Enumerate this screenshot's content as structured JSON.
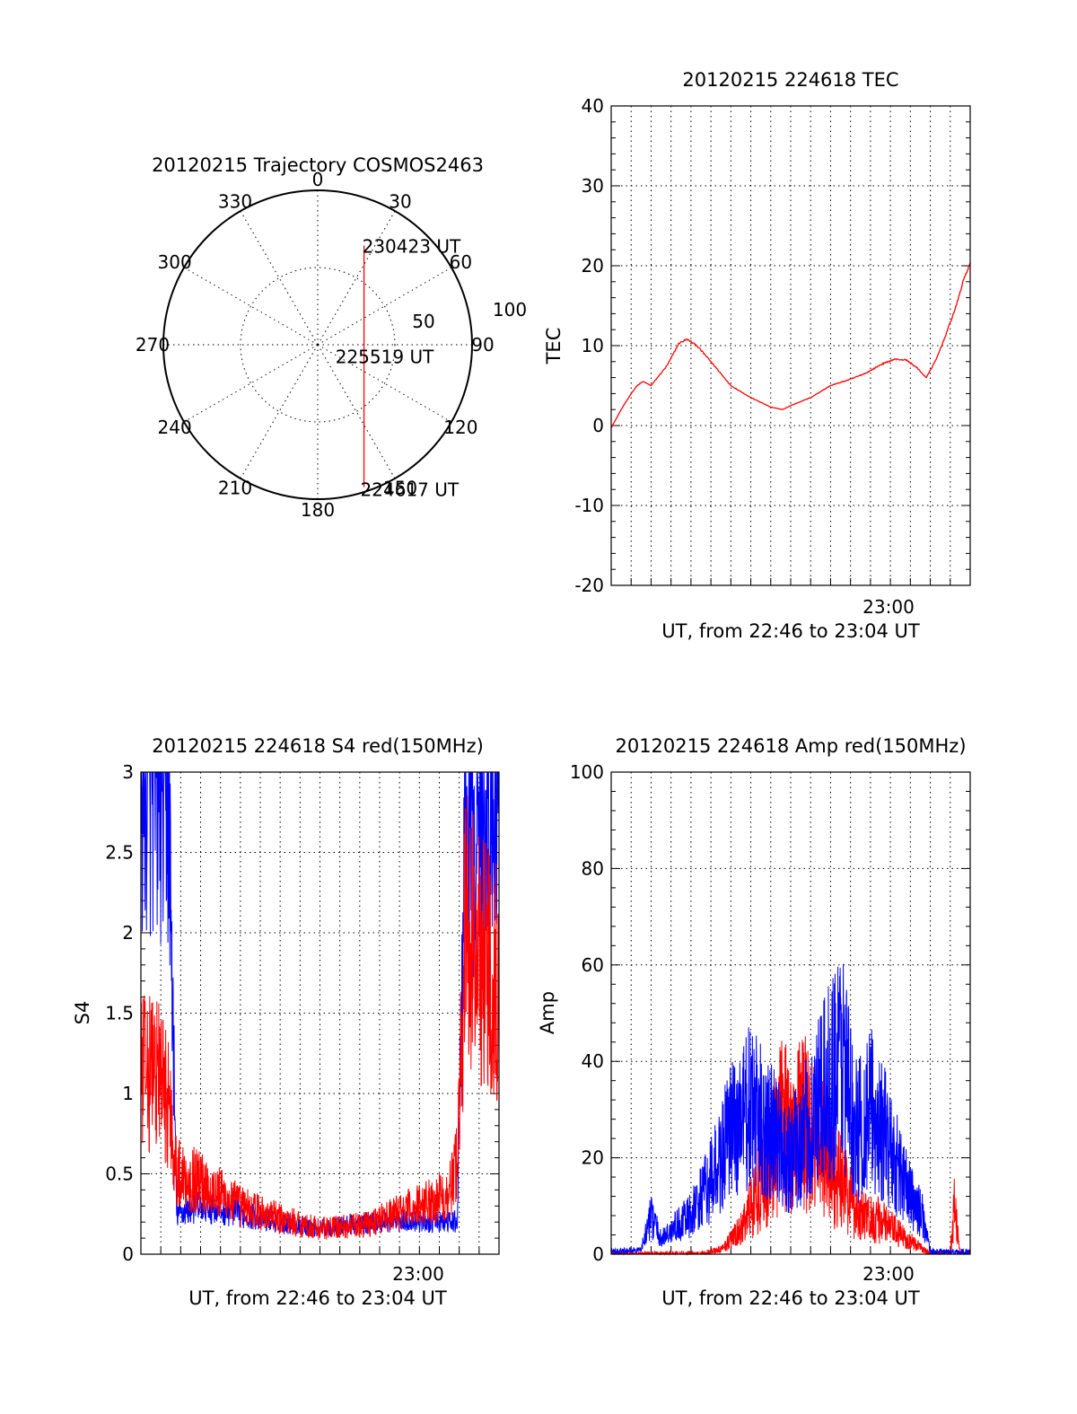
{
  "colors": {
    "red": "#ff0000",
    "blue": "#0000ff",
    "axis": "#000000",
    "background": "#ffffff"
  },
  "chart_data": [
    {
      "type": "polar",
      "title": "20120215 Trajectory COSMOS2463",
      "azimuth_labels": [
        "0",
        "30",
        "60",
        "90",
        "120",
        "150",
        "180",
        "210",
        "240",
        "270",
        "300",
        "330"
      ],
      "radial_labels": [
        "50",
        "100"
      ],
      "radial_ticks": [
        50,
        100
      ],
      "series": [
        {
          "color": "red",
          "points": [
            {
              "azimuth": 162,
              "zenith": 97
            },
            {
              "azimuth": 25,
              "zenith": 71
            }
          ]
        }
      ],
      "annotations": [
        {
          "text": "230423 UT",
          "azimuth": 25,
          "zenith": 71
        },
        {
          "text": "225519 UT",
          "azimuth": 118,
          "zenith": 13
        },
        {
          "text": "224617 UT",
          "azimuth": 162,
          "zenith": 97
        }
      ]
    },
    {
      "type": "line",
      "title": "20120215 224618 TEC",
      "xlabel": "UT, from 22:46 to 23:04 UT",
      "ylabel": "TEC",
      "xlim": [
        0,
        18
      ],
      "ylim": [
        -20,
        40
      ],
      "yticks": [
        -20,
        -10,
        0,
        10,
        20,
        30,
        40
      ],
      "xtick_labels": [
        {
          "at": 14,
          "text": "23:00"
        }
      ],
      "grid": true,
      "series": [
        {
          "color": "red",
          "noise": 0.25,
          "x": [
            0,
            0.5,
            1,
            1.3,
            1.6,
            2,
            2.8,
            3.4,
            3.8,
            4.3,
            5,
            6,
            7,
            8,
            8.6,
            9,
            10,
            11,
            12,
            12.8,
            13.5,
            14.2,
            14.8,
            15.3,
            15.8,
            16.3,
            16.8,
            17.3,
            17.7,
            18
          ],
          "y": [
            -0.3,
            2,
            4,
            5,
            5.5,
            5,
            7.5,
            10.3,
            10.8,
            10,
            8,
            5,
            3.5,
            2.3,
            2,
            2.5,
            3.5,
            5,
            5.8,
            6.6,
            7.6,
            8.3,
            8.2,
            7.3,
            6,
            8.3,
            11.5,
            15,
            18.5,
            20.3
          ]
        }
      ]
    },
    {
      "type": "line",
      "title": "20120215 224618 S4 red(150MHz)",
      "xlabel": "UT, from 22:46 to 23:04 UT",
      "ylabel": "S4",
      "xlim": [
        0,
        18
      ],
      "ylim": [
        0,
        3
      ],
      "yticks": [
        0,
        0.5,
        1,
        1.5,
        2,
        2.5,
        3
      ],
      "ytick_labels": [
        "0",
        "0.5",
        "1",
        "1.5",
        "2",
        "2.5",
        "3"
      ],
      "xtick_labels": [
        {
          "at": 14,
          "text": "23:00"
        }
      ],
      "grid": true,
      "series": [
        {
          "color": "blue",
          "noise": 0.35,
          "x": [
            0,
            0.8,
            1.4,
            1.8,
            3,
            5,
            7,
            9,
            11,
            13,
            15.5,
            15.9,
            16.3,
            18
          ],
          "y": [
            3,
            3,
            2.8,
            0.25,
            0.3,
            0.25,
            0.2,
            0.16,
            0.19,
            0.21,
            0.2,
            0.2,
            2.6,
            2.8
          ]
        },
        {
          "color": "red",
          "noise": 0.45,
          "x": [
            0,
            0.8,
            1.4,
            1.8,
            3,
            5,
            7,
            9,
            11,
            13,
            15.5,
            15.9,
            16.3,
            18
          ],
          "y": [
            1.1,
            1.15,
            0.95,
            0.5,
            0.45,
            0.3,
            0.22,
            0.16,
            0.18,
            0.26,
            0.38,
            0.6,
            2.0,
            1.7
          ]
        }
      ]
    },
    {
      "type": "line",
      "title": "20120215 224618 Amp red(150MHz)",
      "xlabel": "UT, from 22:46 to 23:04 UT",
      "ylabel": "Amp",
      "xlim": [
        0,
        18
      ],
      "ylim": [
        0,
        100
      ],
      "yticks": [
        0,
        20,
        40,
        60,
        80,
        100
      ],
      "xtick_labels": [
        {
          "at": 14,
          "text": "23:00"
        }
      ],
      "grid": true,
      "series": [
        {
          "color": "red",
          "noise": 0.7,
          "x": [
            0,
            4.5,
            5.5,
            6.5,
            7.5,
            8.5,
            9.5,
            10.5,
            11.5,
            12.5,
            13.5,
            14.5,
            15.3,
            16,
            17,
            17.2,
            17.5,
            18
          ],
          "y": [
            0,
            0,
            1,
            5,
            15,
            26,
            28,
            22,
            15,
            8,
            7,
            4,
            2,
            0,
            0,
            10,
            0,
            0
          ]
        },
        {
          "color": "blue",
          "noise": 0.6,
          "x": [
            0,
            1.5,
            2.0,
            2.5,
            3,
            4,
            5,
            6,
            7,
            8,
            9,
            10,
            11,
            11.6,
            12.2,
            13,
            14,
            15,
            15.6,
            16,
            18
          ],
          "y": [
            0.5,
            1,
            8,
            3,
            5,
            8,
            15,
            25,
            30,
            25,
            20,
            27,
            36,
            42,
            25,
            30,
            22,
            12,
            8,
            0.5,
            0.5
          ]
        }
      ]
    }
  ]
}
